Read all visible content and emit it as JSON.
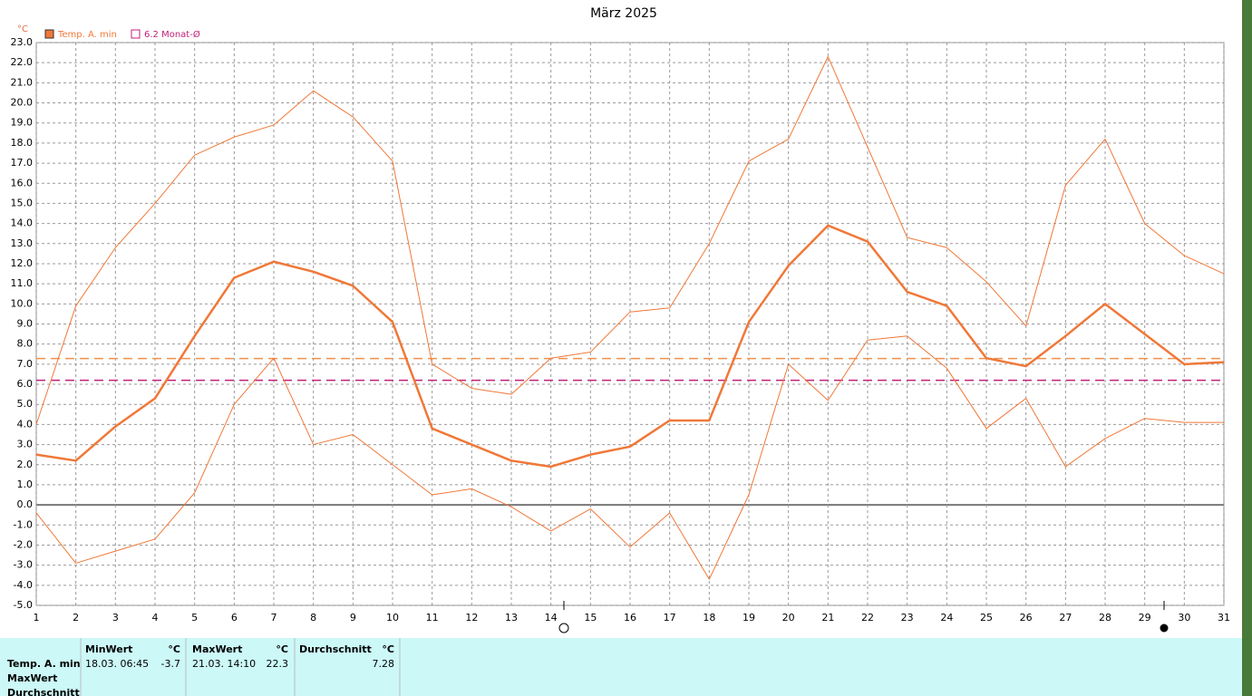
{
  "chart_data": {
    "type": "line",
    "title": "März 2025",
    "unit_label": "°C",
    "x": [
      1,
      2,
      3,
      4,
      5,
      6,
      7,
      8,
      9,
      10,
      11,
      12,
      13,
      14,
      15,
      16,
      17,
      18,
      19,
      20,
      21,
      22,
      23,
      24,
      25,
      26,
      27,
      28,
      29,
      30,
      31
    ],
    "xlim": [
      1,
      31
    ],
    "xticks": [
      1,
      2,
      3,
      4,
      5,
      6,
      7,
      8,
      9,
      10,
      11,
      12,
      13,
      14,
      15,
      16,
      17,
      18,
      19,
      20,
      21,
      22,
      23,
      24,
      25,
      26,
      27,
      28,
      29,
      30,
      31
    ],
    "ylim": [
      -5,
      23
    ],
    "yticks": [
      {
        "value": -5,
        "label": "-5.0"
      },
      {
        "value": -4,
        "label": "-4.0"
      },
      {
        "value": -3,
        "label": "-3.0"
      },
      {
        "value": -2,
        "label": "-2.0"
      },
      {
        "value": -1,
        "label": "-1.0"
      },
      {
        "value": 0,
        "label": "0.0"
      },
      {
        "value": 1,
        "label": "1.0"
      },
      {
        "value": 2,
        "label": "2.0"
      },
      {
        "value": 3,
        "label": "3.0"
      },
      {
        "value": 4,
        "label": "4.0"
      },
      {
        "value": 5,
        "label": "5.0"
      },
      {
        "value": 6,
        "label": "6.0"
      },
      {
        "value": 7,
        "label": "7.0"
      },
      {
        "value": 8,
        "label": "8.0"
      },
      {
        "value": 9,
        "label": "9.0"
      },
      {
        "value": 10,
        "label": "10.0"
      },
      {
        "value": 11,
        "label": "11.0"
      },
      {
        "value": 12,
        "label": "12.0"
      },
      {
        "value": 13,
        "label": "13.0"
      },
      {
        "value": 14,
        "label": "14.0"
      },
      {
        "value": 15,
        "label": "15.0"
      },
      {
        "value": 16,
        "label": "16.0"
      },
      {
        "value": 17,
        "label": "17.0"
      },
      {
        "value": 18,
        "label": "18.0"
      },
      {
        "value": 19,
        "label": "19.0"
      },
      {
        "value": 20,
        "label": "20.0"
      },
      {
        "value": 21,
        "label": "21.0"
      },
      {
        "value": 22,
        "label": "22.0"
      },
      {
        "value": 23,
        "label": "23.0"
      }
    ],
    "grid": true,
    "series": [
      {
        "name": "Temp. A. min",
        "color": "#f07838",
        "values": [
          2.5,
          2.2,
          3.9,
          5.3,
          8.4,
          11.3,
          12.1,
          11.6,
          10.9,
          9.1,
          3.8,
          3.0,
          2.2,
          1.9,
          2.5,
          2.9,
          4.2,
          4.2,
          9.1,
          11.9,
          13.9,
          13.1,
          10.6,
          9.9,
          7.3,
          6.9,
          8.4,
          10.0,
          8.5,
          7.0,
          7.1
        ],
        "upper": [
          4.0,
          9.9,
          12.8,
          15.0,
          17.4,
          18.3,
          18.9,
          20.6,
          19.3,
          17.1,
          7.0,
          5.8,
          5.5,
          7.3,
          7.6,
          9.6,
          9.8,
          13.0,
          17.1,
          18.2,
          22.3,
          17.8,
          13.3,
          12.8,
          11.1,
          8.9,
          15.9,
          18.2,
          14.0,
          12.4,
          11.5
        ],
        "lower": [
          -0.4,
          -2.9,
          -2.3,
          -1.7,
          0.6,
          5.0,
          7.3,
          3.0,
          3.5,
          2.0,
          0.5,
          0.8,
          -0.1,
          -1.3,
          -0.2,
          -2.1,
          -0.4,
          -3.7,
          0.5,
          7.0,
          5.2,
          8.2,
          8.4,
          6.8,
          3.8,
          5.3,
          1.9,
          3.3,
          4.3,
          4.1,
          4.1
        ]
      }
    ],
    "reference_lines": [
      {
        "value": 7.28,
        "color": "#f09050"
      },
      {
        "value": 6.2,
        "label": "6.2 Monat-Ø",
        "color": "#c0207a"
      }
    ]
  },
  "table": {
    "row_labels": [
      "Temp. A. min",
      "MaxWert",
      "Durchschnitt"
    ],
    "columns": [
      {
        "header": "MinWert",
        "unit": "°C",
        "time": "18.03. 06:45",
        "value": -3.7
      },
      {
        "header": "MaxWert",
        "unit": "°C",
        "time": "21.03. 14:10",
        "value": 22.3
      },
      {
        "header": "Durchschnitt",
        "unit": "°C",
        "value": 7.28
      }
    ]
  }
}
